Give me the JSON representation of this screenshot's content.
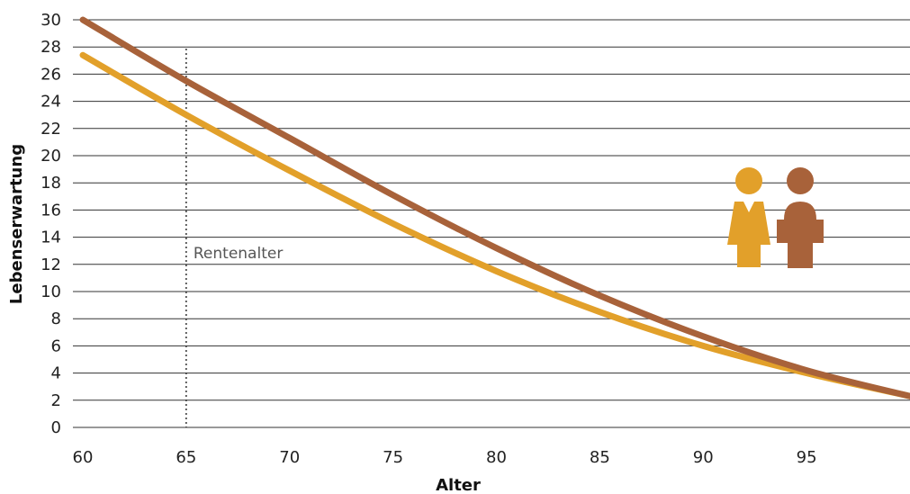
{
  "chart_data": {
    "type": "line",
    "xlabel": "Alter",
    "ylabel": "Lebenserwartung",
    "xlim": [
      60,
      100
    ],
    "ylim": [
      0,
      30
    ],
    "x_ticks": [
      60,
      65,
      70,
      75,
      80,
      85,
      90,
      95
    ],
    "y_ticks": [
      0,
      2,
      4,
      6,
      8,
      10,
      12,
      14,
      16,
      18,
      20,
      22,
      24,
      26,
      28,
      30
    ],
    "grid": true,
    "legend": "icons-right",
    "annotations": [
      {
        "text": "Rentenalter",
        "x": 65
      }
    ],
    "series": [
      {
        "icon": "man-icon",
        "color": "#a8623a",
        "x": [
          60,
          65,
          70,
          75,
          80,
          85,
          90,
          95,
          100
        ],
        "y": [
          30.0,
          25.5,
          21.3,
          17.1,
          13.2,
          9.7,
          6.7,
          4.2,
          2.3
        ]
      },
      {
        "icon": "woman-icon",
        "color": "#e2a02a",
        "x": [
          60,
          65,
          70,
          75,
          80,
          85,
          90,
          95,
          100
        ],
        "y": [
          27.4,
          23.0,
          18.9,
          15.0,
          11.5,
          8.5,
          6.0,
          4.0,
          2.3
        ]
      }
    ]
  }
}
